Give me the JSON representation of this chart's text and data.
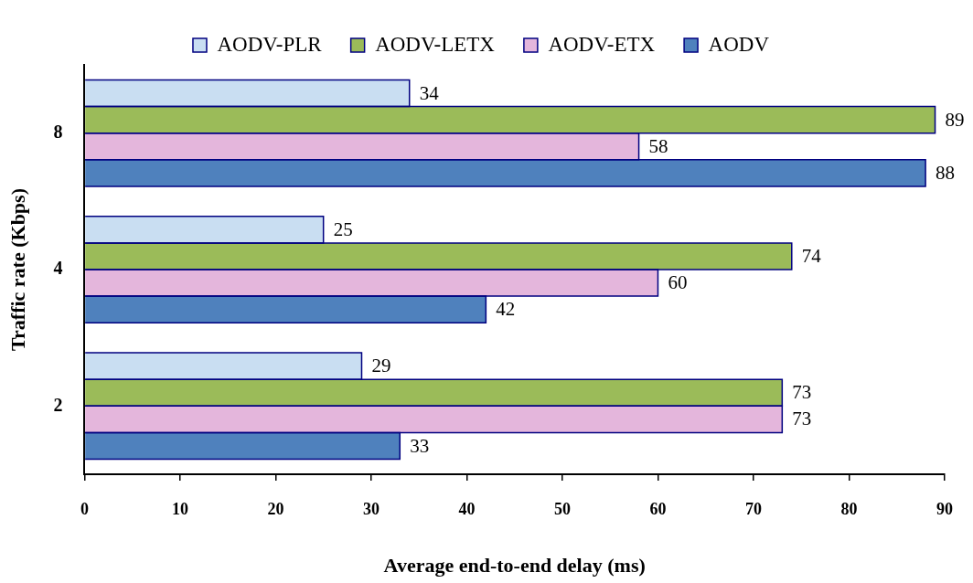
{
  "chart_data": {
    "type": "bar",
    "orientation": "horizontal",
    "categories": [
      "8",
      "4",
      "2"
    ],
    "series": [
      {
        "name": "AODV-PLR",
        "color": "#c9def2",
        "values": [
          34,
          25,
          29
        ]
      },
      {
        "name": "AODV-LETX",
        "color": "#9bbb59",
        "values": [
          89,
          74,
          73
        ]
      },
      {
        "name": "AODV-ETX",
        "color": "#e4b6dc",
        "values": [
          58,
          60,
          73
        ]
      },
      {
        "name": "AODV",
        "color": "#4f81bd",
        "values": [
          88,
          42,
          33
        ]
      }
    ],
    "xlim": [
      0,
      90
    ],
    "xticks": [
      0,
      10,
      20,
      30,
      40,
      50,
      60,
      70,
      80,
      90
    ],
    "xlabel": "Average end-to-end delay (ms)",
    "ylabel": "Traffic rate (Kbps)",
    "legend": "top",
    "grid": false,
    "data_labels": true
  }
}
